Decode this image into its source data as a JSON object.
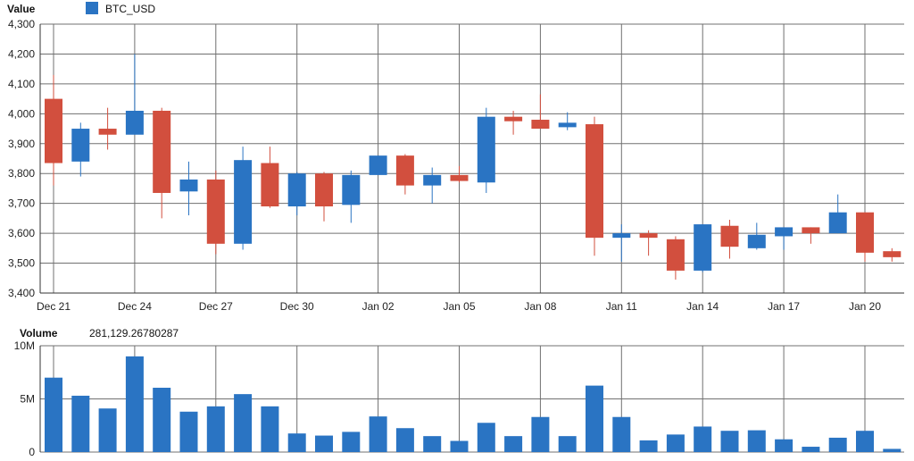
{
  "colors": {
    "up": "#2a74c3",
    "down": "#d24f3e",
    "grid": "#707070",
    "axis": "#333333"
  },
  "chart_data": [
    {
      "type": "candlestick",
      "title": "Value",
      "legend": {
        "label": "BTC_USD",
        "color": "#2a74c3",
        "placement": "top-left"
      },
      "ylim": [
        3400,
        4300
      ],
      "yticks": [
        3400,
        3500,
        3600,
        3700,
        3800,
        3900,
        4000,
        4100,
        4200,
        4300
      ],
      "ytick_labels": [
        "3,400",
        "3,500",
        "3,600",
        "3,700",
        "3,800",
        "3,900",
        "4,000",
        "4,100",
        "4,200",
        "4,300"
      ],
      "xtick_labels": [
        {
          "index": 0,
          "label": "Dec 21"
        },
        {
          "index": 3,
          "label": "Dec 24"
        },
        {
          "index": 6,
          "label": "Dec 27"
        },
        {
          "index": 9,
          "label": "Dec 30"
        },
        {
          "index": 12,
          "label": "Jan 02"
        },
        {
          "index": 15,
          "label": "Jan 05"
        },
        {
          "index": 18,
          "label": "Jan 08"
        },
        {
          "index": 21,
          "label": "Jan 11"
        },
        {
          "index": 24,
          "label": "Jan 14"
        },
        {
          "index": 27,
          "label": "Jan 17"
        },
        {
          "index": 30,
          "label": "Jan 20"
        }
      ],
      "grid": true,
      "candles": [
        {
          "o": 4050,
          "h": 4130,
          "l": 3760,
          "c": 3835
        },
        {
          "o": 3840,
          "h": 3970,
          "l": 3790,
          "c": 3950
        },
        {
          "o": 3950,
          "h": 4020,
          "l": 3880,
          "c": 3930
        },
        {
          "o": 3930,
          "h": 4200,
          "l": 3930,
          "c": 4010
        },
        {
          "o": 4010,
          "h": 4020,
          "l": 3650,
          "c": 3735
        },
        {
          "o": 3740,
          "h": 3840,
          "l": 3660,
          "c": 3780
        },
        {
          "o": 3780,
          "h": 3810,
          "l": 3530,
          "c": 3565
        },
        {
          "o": 3565,
          "h": 3890,
          "l": 3545,
          "c": 3845
        },
        {
          "o": 3835,
          "h": 3890,
          "l": 3685,
          "c": 3690
        },
        {
          "o": 3690,
          "h": 3805,
          "l": 3660,
          "c": 3800
        },
        {
          "o": 3800,
          "h": 3805,
          "l": 3640,
          "c": 3690
        },
        {
          "o": 3695,
          "h": 3810,
          "l": 3635,
          "c": 3795
        },
        {
          "o": 3795,
          "h": 3860,
          "l": 3795,
          "c": 3860
        },
        {
          "o": 3860,
          "h": 3865,
          "l": 3730,
          "c": 3760
        },
        {
          "o": 3760,
          "h": 3820,
          "l": 3700,
          "c": 3795
        },
        {
          "o": 3795,
          "h": 3825,
          "l": 3770,
          "c": 3775
        },
        {
          "o": 3770,
          "h": 4020,
          "l": 3735,
          "c": 3990
        },
        {
          "o": 3990,
          "h": 4010,
          "l": 3930,
          "c": 3975
        },
        {
          "o": 3980,
          "h": 4065,
          "l": 3950,
          "c": 3950
        },
        {
          "o": 3955,
          "h": 4005,
          "l": 3945,
          "c": 3970
        },
        {
          "o": 3965,
          "h": 3990,
          "l": 3525,
          "c": 3585
        },
        {
          "o": 3585,
          "h": 3630,
          "l": 3505,
          "c": 3600
        },
        {
          "o": 3600,
          "h": 3610,
          "l": 3525,
          "c": 3585
        },
        {
          "o": 3580,
          "h": 3590,
          "l": 3445,
          "c": 3475
        },
        {
          "o": 3475,
          "h": 3630,
          "l": 3470,
          "c": 3630
        },
        {
          "o": 3625,
          "h": 3645,
          "l": 3515,
          "c": 3555
        },
        {
          "o": 3550,
          "h": 3635,
          "l": 3545,
          "c": 3595
        },
        {
          "o": 3590,
          "h": 3620,
          "l": 3545,
          "c": 3620
        },
        {
          "o": 3620,
          "h": 3620,
          "l": 3565,
          "c": 3600
        },
        {
          "o": 3600,
          "h": 3730,
          "l": 3600,
          "c": 3670
        },
        {
          "o": 3670,
          "h": 3670,
          "l": 3505,
          "c": 3535
        },
        {
          "o": 3540,
          "h": 3550,
          "l": 3505,
          "c": 3520
        }
      ]
    },
    {
      "type": "bar",
      "title": "Volume",
      "readout": "281,129.26780287",
      "ylim": [
        0,
        10000000
      ],
      "yticks": [
        0,
        5000000,
        10000000
      ],
      "ytick_labels": [
        "0",
        "5M",
        "10M"
      ],
      "grid": true,
      "values": [
        7000000,
        5300000,
        4100000,
        9000000,
        6050000,
        3800000,
        4300000,
        5450000,
        4300000,
        1750000,
        1550000,
        1900000,
        3350000,
        2250000,
        1500000,
        1050000,
        2750000,
        1500000,
        3300000,
        1500000,
        6250000,
        3300000,
        1100000,
        1650000,
        2400000,
        2000000,
        2050000,
        1200000,
        500000,
        1350000,
        2000000,
        300000
      ]
    }
  ]
}
